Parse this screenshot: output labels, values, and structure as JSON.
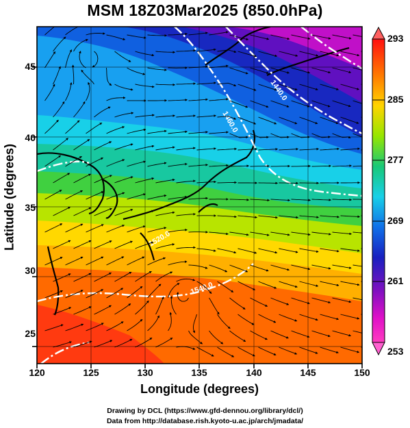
{
  "title": "MSM 18Z03Mar2025 (850.0hPa)",
  "x_axis": {
    "label": "Longitude (degrees)",
    "range": [
      120,
      150
    ],
    "ticks": [
      "120",
      "125",
      "130",
      "135",
      "140",
      "145",
      "150"
    ]
  },
  "y_axis": {
    "label": "Latitude  (degrees)",
    "range": [
      22.5,
      47.5
    ],
    "ticks": [
      "25",
      "30",
      "35",
      "40",
      "45"
    ]
  },
  "colorbar": {
    "range": [
      253,
      293
    ],
    "ticks": [
      "293",
      "285",
      "277",
      "269",
      "261",
      "253"
    ],
    "colors": [
      "#ff1010",
      "#ff7a00",
      "#ffd400",
      "#96e600",
      "#18c878",
      "#18d0e8",
      "#1070e8",
      "#1820c0",
      "#8010c0",
      "#e010c8",
      "#ff3cc0"
    ]
  },
  "contours": [
    {
      "label": "1440.0"
    },
    {
      "label": "1460.0"
    },
    {
      "label": "1520.0"
    },
    {
      "label": "1540.0"
    }
  ],
  "credits": {
    "line1": "Drawing by DCL (https://www.gfd-dennou.org/library/dcl/)",
    "line2": "Data from http://database.rish.kyoto-u.ac.jp/arch/jmadata/"
  }
}
